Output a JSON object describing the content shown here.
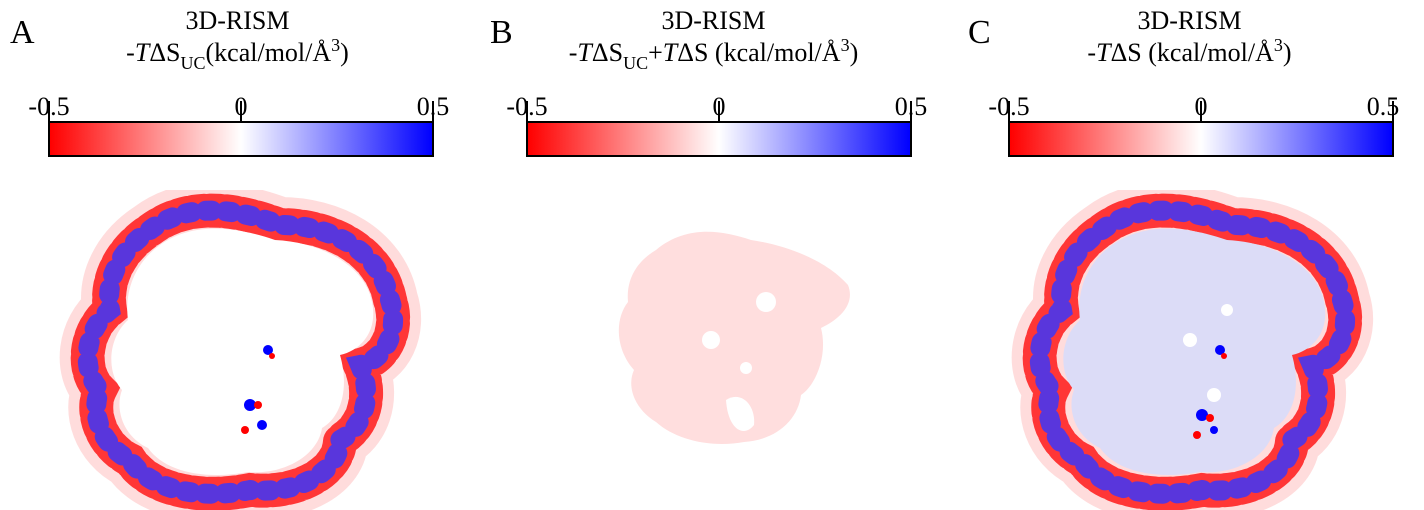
{
  "colors": {
    "negative": "#ff0000",
    "neutral": "#ffffff",
    "positive": "#0000ff"
  },
  "panels": [
    {
      "label": "A",
      "title_line1": "3D-RISM",
      "title_line2_parts": [
        "-",
        "T",
        "ΔS",
        "UC",
        "(kcal/mol/Å",
        "3",
        ")"
      ],
      "colorbar": {
        "min": -0.5,
        "mid": 0,
        "max": 0.5,
        "tick_labels": [
          "-0.5",
          "0",
          "0.5"
        ]
      },
      "map_style": "shell-only"
    },
    {
      "label": "B",
      "title_line1": "3D-RISM",
      "title_line2_parts": [
        "-",
        "T",
        "ΔS",
        "UC",
        "+",
        "T",
        "ΔS",
        " (kcal/mol/Å",
        "3",
        ")"
      ],
      "colorbar": {
        "min": -0.5,
        "mid": 0,
        "max": 0.5,
        "tick_labels": [
          "-0.5",
          "0",
          "0.5"
        ]
      },
      "map_style": "uniform-pale-red"
    },
    {
      "label": "C",
      "title_line1": "3D-RISM",
      "title_line2_parts": [
        "-",
        "T",
        "ΔS",
        " (kcal/mol/Å",
        "3",
        ")"
      ],
      "colorbar": {
        "min": -0.5,
        "mid": 0,
        "max": 0.5,
        "tick_labels": [
          "-0.5",
          "0",
          "0.5"
        ]
      },
      "map_style": "shell-with-pale-blue-core"
    }
  ]
}
